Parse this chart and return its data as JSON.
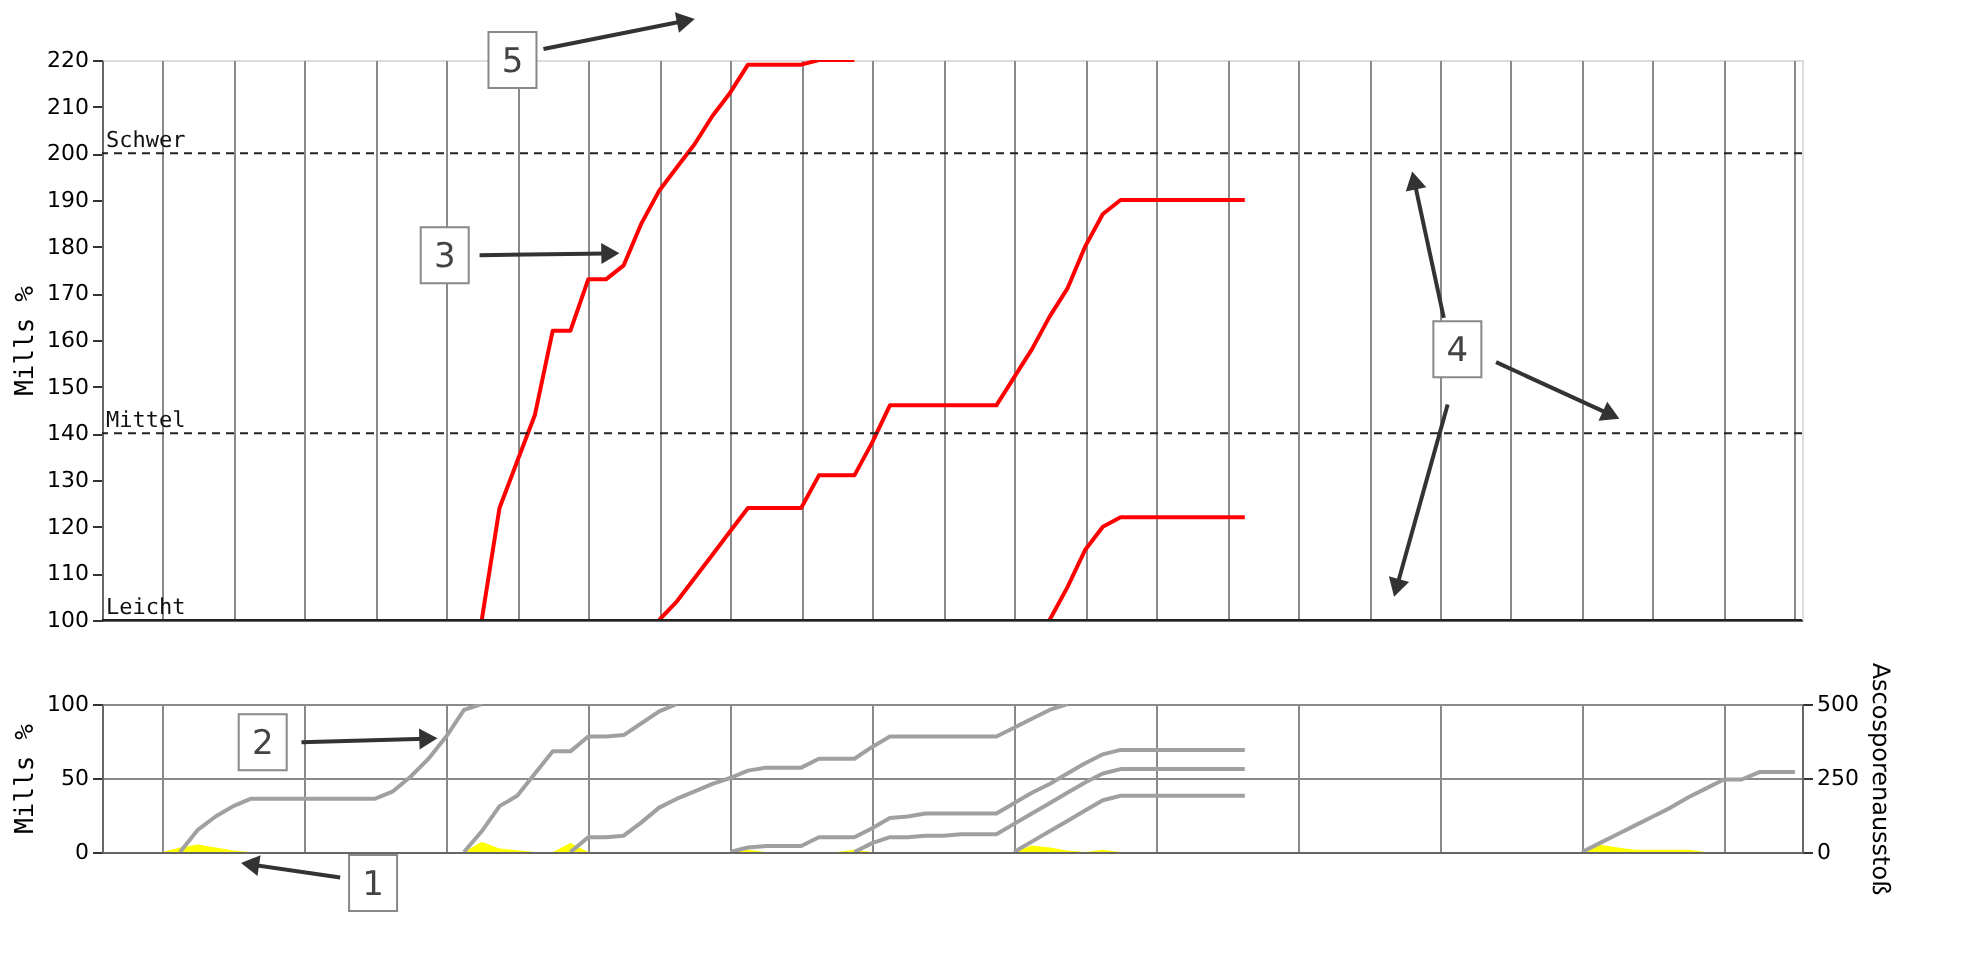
{
  "chart_data": [
    {
      "type": "line",
      "categories": [
        null,
        null,
        null,
        null,
        null,
        null,
        null,
        null,
        null,
        null,
        null,
        null,
        null,
        null,
        null,
        null,
        null,
        null,
        null,
        null,
        null,
        null,
        null,
        null,
        null,
        null,
        null,
        null,
        null,
        null,
        null,
        null,
        null,
        null,
        null,
        null,
        null,
        null,
        null,
        null,
        null,
        null,
        null,
        null,
        null,
        null,
        null,
        null,
        null,
        null,
        null,
        null,
        null,
        null,
        null,
        null,
        null,
        null,
        null,
        null,
        null,
        null,
        null,
        null,
        null,
        null,
        null,
        null,
        null,
        null,
        null,
        null,
        null,
        null,
        null,
        null,
        null,
        null,
        null,
        null,
        null,
        null,
        null,
        null,
        null,
        null,
        null,
        null,
        null,
        null,
        null,
        null,
        null,
        null,
        null,
        null
      ],
      "ylim": [
        100,
        220
      ],
      "yticks": [
        100,
        110,
        120,
        130,
        140,
        150,
        160,
        170,
        180,
        190,
        200,
        210,
        220
      ],
      "ylabel": "Mills %",
      "grid": "x",
      "tick_labels": "y",
      "line_style": "solid",
      "series": [
        {
          "color": "#ff0000",
          "values": [
            null,
            null,
            null,
            null,
            null,
            null,
            null,
            null,
            null,
            null,
            null,
            null,
            null,
            null,
            null,
            null,
            null,
            null,
            null,
            null,
            null,
            100,
            124,
            134,
            144,
            162,
            162,
            173,
            173,
            176,
            185,
            192,
            197,
            202,
            208,
            213,
            219,
            219,
            219,
            219,
            220,
            220,
            220,
            null,
            null,
            null,
            null,
            null,
            null,
            null,
            null,
            null,
            null,
            null,
            null,
            null,
            null,
            null,
            null,
            null,
            null,
            null,
            null,
            null,
            null,
            null,
            null,
            null,
            null,
            null,
            null,
            null,
            null,
            null,
            null,
            null,
            null,
            null,
            null,
            null,
            null,
            null,
            null,
            null,
            null,
            null,
            null,
            null,
            null,
            null,
            null,
            null,
            null,
            null,
            null,
            null
          ]
        },
        {
          "color": "#ff0000",
          "values": [
            null,
            null,
            null,
            null,
            null,
            null,
            null,
            null,
            null,
            null,
            null,
            null,
            null,
            null,
            null,
            null,
            null,
            null,
            null,
            null,
            null,
            null,
            null,
            null,
            null,
            null,
            null,
            null,
            null,
            null,
            null,
            100,
            104,
            109,
            114,
            119,
            124,
            124,
            124,
            124,
            131,
            131,
            131,
            138,
            146,
            146,
            146,
            146,
            146,
            146,
            146,
            152,
            158,
            165,
            171,
            180,
            187,
            190,
            190,
            190,
            190,
            190,
            190,
            190,
            190,
            null,
            null,
            null,
            null,
            null,
            null,
            null,
            null,
            null,
            null,
            null,
            null,
            null,
            null,
            null,
            null,
            null,
            null,
            null,
            null,
            null,
            null,
            null,
            null,
            null,
            null,
            null,
            null,
            null,
            null,
            null
          ]
        },
        {
          "color": "#ff0000",
          "values": [
            null,
            null,
            null,
            null,
            null,
            null,
            null,
            null,
            null,
            null,
            null,
            null,
            null,
            null,
            null,
            null,
            null,
            null,
            null,
            null,
            null,
            null,
            null,
            null,
            null,
            null,
            null,
            null,
            null,
            null,
            null,
            null,
            null,
            null,
            null,
            null,
            null,
            null,
            null,
            null,
            null,
            null,
            null,
            null,
            null,
            null,
            null,
            null,
            null,
            null,
            null,
            null,
            null,
            100,
            107,
            115,
            120,
            122,
            122,
            122,
            122,
            122,
            122,
            122,
            122,
            null,
            null,
            null,
            null,
            null,
            null,
            null,
            null,
            null,
            null,
            null,
            null,
            null,
            null,
            null,
            null,
            null,
            null,
            null,
            null,
            null,
            null,
            null,
            null,
            null,
            null,
            null,
            null,
            null,
            null,
            null
          ]
        }
      ],
      "ref_lines": [
        {
          "axis": "y",
          "value": 200,
          "label": "Schwer",
          "line_style": "dashed"
        },
        {
          "axis": "y",
          "value": 140,
          "label": "Mittel",
          "line_style": "dashed"
        },
        {
          "axis": "y",
          "value": 100,
          "label": "Leicht",
          "line_style": "solid"
        }
      ],
      "annotations": [
        "5",
        "3",
        "4"
      ]
    },
    {
      "type": "line",
      "categories": [
        null,
        null,
        null,
        null,
        null,
        null,
        null,
        null,
        null,
        null,
        null,
        null,
        null,
        null,
        null,
        null,
        null,
        null,
        null,
        null,
        null,
        null,
        null,
        null,
        null,
        null,
        null,
        null,
        null,
        null,
        null,
        null,
        null,
        null,
        null,
        null,
        null,
        null,
        null,
        null,
        null,
        null,
        null,
        null,
        null,
        null,
        null,
        null,
        null,
        null,
        null,
        null,
        null,
        null,
        null,
        null,
        null,
        null,
        null,
        null,
        null,
        null,
        null,
        null,
        null,
        null,
        null,
        null,
        null,
        null,
        null,
        null,
        null,
        null,
        null,
        null,
        null,
        null,
        null,
        null,
        null,
        null,
        null,
        null,
        null,
        null,
        null,
        null,
        null,
        null,
        null,
        null,
        null,
        null,
        null,
        null
      ],
      "ylim": [
        0,
        100
      ],
      "yticks": [
        0,
        50,
        100
      ],
      "y2lim": [
        0,
        500
      ],
      "y2ticks": [
        0,
        250,
        500
      ],
      "ylabel": "Mills %",
      "y2label": "Ascosporenausstoß",
      "grid": true,
      "tick_labels": "y",
      "line_style": "solid",
      "series": [
        {
          "type": "area",
          "axis": "y2",
          "color": "#ffff00",
          "values": [
            null,
            null,
            null,
            0,
            15,
            25,
            15,
            5,
            0,
            null,
            null,
            null,
            null,
            null,
            null,
            null,
            null,
            null,
            null,
            null,
            0,
            35,
            12,
            6,
            0,
            0,
            30,
            0,
            null,
            null,
            null,
            null,
            null,
            null,
            null,
            0,
            8,
            0,
            null,
            null,
            null,
            0,
            8,
            0,
            null,
            null,
            null,
            null,
            null,
            null,
            null,
            0,
            22,
            15,
            5,
            0,
            8,
            0,
            null,
            null,
            null,
            null,
            null,
            null,
            null,
            null,
            null,
            null,
            null,
            null,
            null,
            null,
            null,
            null,
            null,
            null,
            null,
            null,
            null,
            null,
            null,
            null,
            null,
            0,
            25,
            15,
            8,
            8,
            8,
            8,
            0,
            null,
            null,
            null,
            null,
            null
          ]
        },
        {
          "color": "#a0a0a0",
          "values": [
            null,
            null,
            null,
            null,
            0,
            15,
            24,
            31,
            36,
            36,
            36,
            36,
            36,
            36,
            36,
            36,
            41,
            51,
            63,
            78,
            96,
            100,
            null,
            null,
            null,
            null,
            null,
            null,
            null,
            null,
            null,
            null,
            null,
            null,
            null,
            null,
            null,
            null,
            null,
            null,
            null,
            null,
            null,
            null,
            null,
            null,
            null,
            null,
            null,
            null,
            null,
            null,
            null,
            null,
            null,
            null,
            null,
            null,
            null,
            null,
            null,
            null,
            null,
            null,
            null,
            null,
            null,
            null,
            null,
            null,
            null,
            null,
            null,
            null,
            null,
            null,
            null,
            null,
            null,
            null,
            null,
            null,
            null,
            null,
            null,
            null,
            null,
            null,
            null,
            null,
            null,
            null,
            null,
            null,
            null,
            null
          ]
        },
        {
          "color": "#a0a0a0",
          "values": [
            null,
            null,
            null,
            null,
            null,
            null,
            null,
            null,
            null,
            null,
            null,
            null,
            null,
            null,
            null,
            null,
            null,
            null,
            null,
            null,
            0,
            14,
            31,
            38,
            53,
            68,
            68,
            78,
            78,
            79,
            87,
            95,
            100,
            null,
            null,
            null,
            null,
            null,
            null,
            null,
            null,
            null,
            null,
            null,
            null,
            null,
            null,
            null,
            null,
            null,
            null,
            null,
            null,
            null,
            null,
            null,
            null,
            null,
            null,
            null,
            null,
            null,
            null,
            null,
            null,
            null,
            null,
            null,
            null,
            null,
            null,
            null,
            null,
            null,
            null,
            null,
            null,
            null,
            null,
            null,
            null,
            null,
            null,
            null,
            null,
            null,
            null,
            null,
            null,
            null,
            null,
            null,
            null,
            null,
            null,
            null
          ]
        },
        {
          "color": "#a0a0a0",
          "values": [
            null,
            null,
            null,
            null,
            null,
            null,
            null,
            null,
            null,
            null,
            null,
            null,
            null,
            null,
            null,
            null,
            null,
            null,
            null,
            null,
            null,
            null,
            null,
            null,
            null,
            null,
            0,
            10,
            10,
            11,
            20,
            30,
            36,
            41,
            46,
            50,
            55,
            57,
            57,
            57,
            63,
            63,
            63,
            71,
            78,
            78,
            78,
            78,
            78,
            78,
            78,
            84,
            90,
            96,
            100,
            null,
            null,
            null,
            null,
            null,
            null,
            null,
            null,
            null,
            null,
            null,
            null,
            null,
            null,
            null,
            null,
            null,
            null,
            null,
            null,
            null,
            null,
            null,
            null,
            null,
            null,
            null,
            null,
            null,
            null,
            null,
            null,
            null,
            null,
            null,
            null,
            null,
            null,
            null,
            null,
            null
          ]
        },
        {
          "color": "#a0a0a0",
          "values": [
            null,
            null,
            null,
            null,
            null,
            null,
            null,
            null,
            null,
            null,
            null,
            null,
            null,
            null,
            null,
            null,
            null,
            null,
            null,
            null,
            null,
            null,
            null,
            null,
            null,
            null,
            null,
            null,
            null,
            null,
            null,
            null,
            null,
            null,
            null,
            0,
            3,
            4,
            4,
            4,
            10,
            10,
            10,
            16,
            23,
            24,
            26,
            26,
            26,
            26,
            26,
            33,
            40,
            46,
            53,
            60,
            66,
            69,
            69,
            69,
            69,
            69,
            69,
            69,
            69,
            null,
            null,
            null,
            null,
            null,
            null,
            null,
            null,
            null,
            null,
            null,
            null,
            null,
            null,
            null,
            null,
            null,
            null,
            null,
            null,
            null,
            null,
            null,
            null,
            null,
            null,
            null,
            null,
            null,
            null,
            null
          ]
        },
        {
          "color": "#a0a0a0",
          "values": [
            null,
            null,
            null,
            null,
            null,
            null,
            null,
            null,
            null,
            null,
            null,
            null,
            null,
            null,
            null,
            null,
            null,
            null,
            null,
            null,
            null,
            null,
            null,
            null,
            null,
            null,
            null,
            null,
            null,
            null,
            null,
            null,
            null,
            null,
            null,
            null,
            null,
            null,
            null,
            null,
            null,
            null,
            0,
            6,
            10,
            10,
            11,
            11,
            12,
            12,
            12,
            19,
            26,
            33,
            40,
            47,
            53,
            56,
            56,
            56,
            56,
            56,
            56,
            56,
            56,
            null,
            null,
            null,
            null,
            null,
            null,
            null,
            null,
            null,
            null,
            null,
            null,
            null,
            null,
            null,
            null,
            null,
            null,
            null,
            null,
            null,
            null,
            null,
            null,
            null,
            null,
            null,
            null,
            null,
            null,
            null
          ]
        },
        {
          "color": "#a0a0a0",
          "values": [
            null,
            null,
            null,
            null,
            null,
            null,
            null,
            null,
            null,
            null,
            null,
            null,
            null,
            null,
            null,
            null,
            null,
            null,
            null,
            null,
            null,
            null,
            null,
            null,
            null,
            null,
            null,
            null,
            null,
            null,
            null,
            null,
            null,
            null,
            null,
            null,
            null,
            null,
            null,
            null,
            null,
            null,
            null,
            null,
            null,
            null,
            null,
            null,
            null,
            null,
            null,
            0,
            7,
            14,
            21,
            28,
            35,
            38,
            38,
            38,
            38,
            38,
            38,
            38,
            38,
            null,
            null,
            null,
            null,
            null,
            null,
            null,
            null,
            null,
            null,
            null,
            null,
            null,
            null,
            null,
            null,
            null,
            null,
            null,
            null,
            null,
            null,
            null,
            null,
            null,
            null,
            null,
            null,
            null,
            null,
            null
          ]
        },
        {
          "color": "#a0a0a0",
          "values": [
            null,
            null,
            null,
            null,
            null,
            null,
            null,
            null,
            null,
            null,
            null,
            null,
            null,
            null,
            null,
            null,
            null,
            null,
            null,
            null,
            null,
            null,
            null,
            null,
            null,
            null,
            null,
            null,
            null,
            null,
            null,
            null,
            null,
            null,
            null,
            null,
            null,
            null,
            null,
            null,
            null,
            null,
            null,
            null,
            null,
            null,
            null,
            null,
            null,
            null,
            null,
            null,
            null,
            null,
            null,
            null,
            null,
            null,
            null,
            null,
            null,
            null,
            null,
            null,
            null,
            null,
            null,
            null,
            null,
            null,
            null,
            null,
            null,
            null,
            null,
            null,
            null,
            null,
            null,
            null,
            null,
            null,
            null,
            0,
            6,
            12,
            18,
            24,
            30,
            37,
            43,
            49,
            49,
            54,
            54,
            54
          ]
        }
      ],
      "annotations": [
        "2",
        "1"
      ]
    }
  ]
}
